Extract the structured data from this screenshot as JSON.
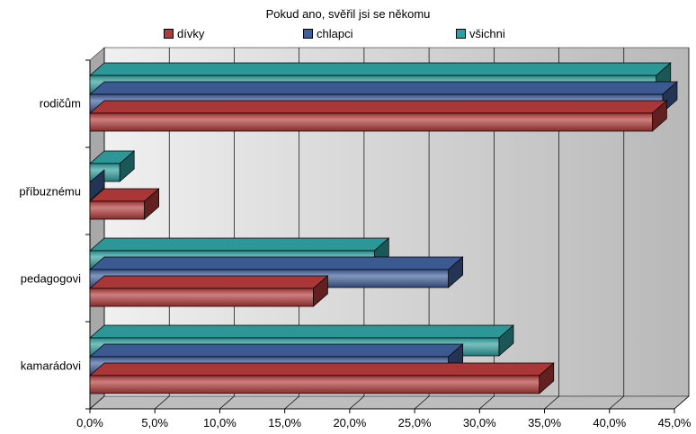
{
  "chart_data": {
    "type": "bar",
    "orientation": "horizontal",
    "style": "3d",
    "title": "Pokud ano, svěřil jsi se někomu",
    "categories": [
      "rodičům",
      "příbuznému",
      "pedagogovi",
      "kamarádovi"
    ],
    "series": [
      {
        "name": "dívky",
        "values": [
          43.3,
          4.2,
          17.2,
          34.6
        ],
        "color": "#b23a3a"
      },
      {
        "name": "chlapci",
        "values": [
          44.1,
          0.0,
          27.6,
          27.6
        ],
        "color": "#3f5f9a"
      },
      {
        "name": "všichni",
        "values": [
          43.6,
          2.3,
          21.9,
          31.5
        ],
        "color": "#2f9e9e"
      }
    ],
    "xlim": [
      0,
      45
    ],
    "x_ticks": [
      "0,0%",
      "5,0%",
      "10,0%",
      "15,0%",
      "20,0%",
      "25,0%",
      "30,0%",
      "35,0%",
      "40,0%",
      "45,0%"
    ],
    "grid": true,
    "legend_position": "top"
  }
}
